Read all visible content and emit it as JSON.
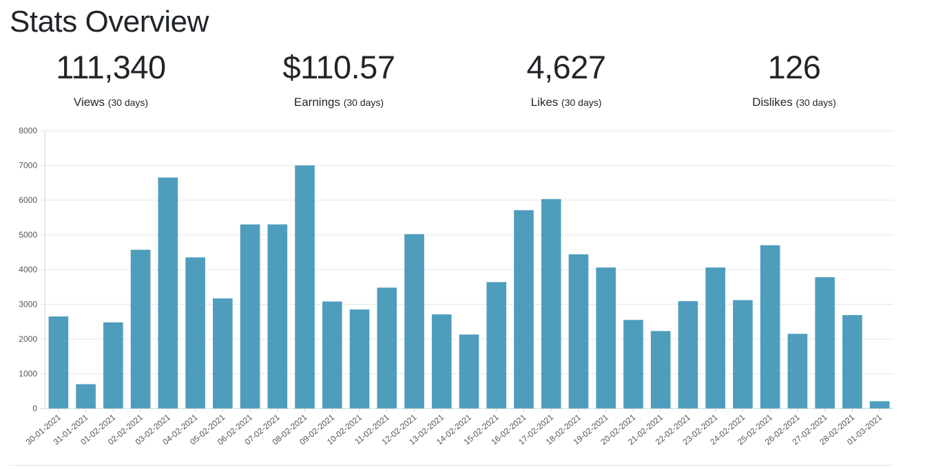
{
  "page": {
    "title": "Stats Overview"
  },
  "stats": [
    {
      "value": "111,340",
      "label": "Views",
      "period": "(30 days)"
    },
    {
      "value": "$110.57",
      "label": "Earnings",
      "period": "(30 days)"
    },
    {
      "value": "4,627",
      "label": "Likes",
      "period": "(30 days)"
    },
    {
      "value": "126",
      "label": "Dislikes",
      "period": "(30 days)"
    }
  ],
  "chart_data": {
    "type": "bar",
    "title": "",
    "xlabel": "",
    "ylabel": "",
    "ylim": [
      0,
      8000
    ],
    "yticks": [
      0,
      1000,
      2000,
      3000,
      4000,
      5000,
      6000,
      7000,
      8000
    ],
    "grid": true,
    "bar_color": "#4e9dbd",
    "categories": [
      "30-01-2021",
      "31-01-2021",
      "01-02-2021",
      "02-02-2021",
      "03-02-2021",
      "04-02-2021",
      "05-02-2021",
      "06-02-2021",
      "07-02-2021",
      "08-02-2021",
      "09-02-2021",
      "10-02-2021",
      "11-02-2021",
      "12-02-2021",
      "13-02-2021",
      "14-02-2021",
      "15-02-2021",
      "16-02-2021",
      "17-02-2021",
      "18-02-2021",
      "19-02-2021",
      "20-02-2021",
      "21-02-2021",
      "22-02-2021",
      "23-02-2021",
      "24-02-2021",
      "25-02-2021",
      "26-02-2021",
      "27-02-2021",
      "28-02-2021",
      "01-03-2021"
    ],
    "values": [
      2650,
      700,
      2480,
      4570,
      6650,
      4350,
      3170,
      5300,
      5300,
      7000,
      3080,
      2850,
      3480,
      5020,
      2710,
      2130,
      3640,
      5710,
      6030,
      4440,
      4060,
      2550,
      2230,
      3090,
      4060,
      3120,
      4700,
      2150,
      3780,
      2690,
      210
    ]
  }
}
